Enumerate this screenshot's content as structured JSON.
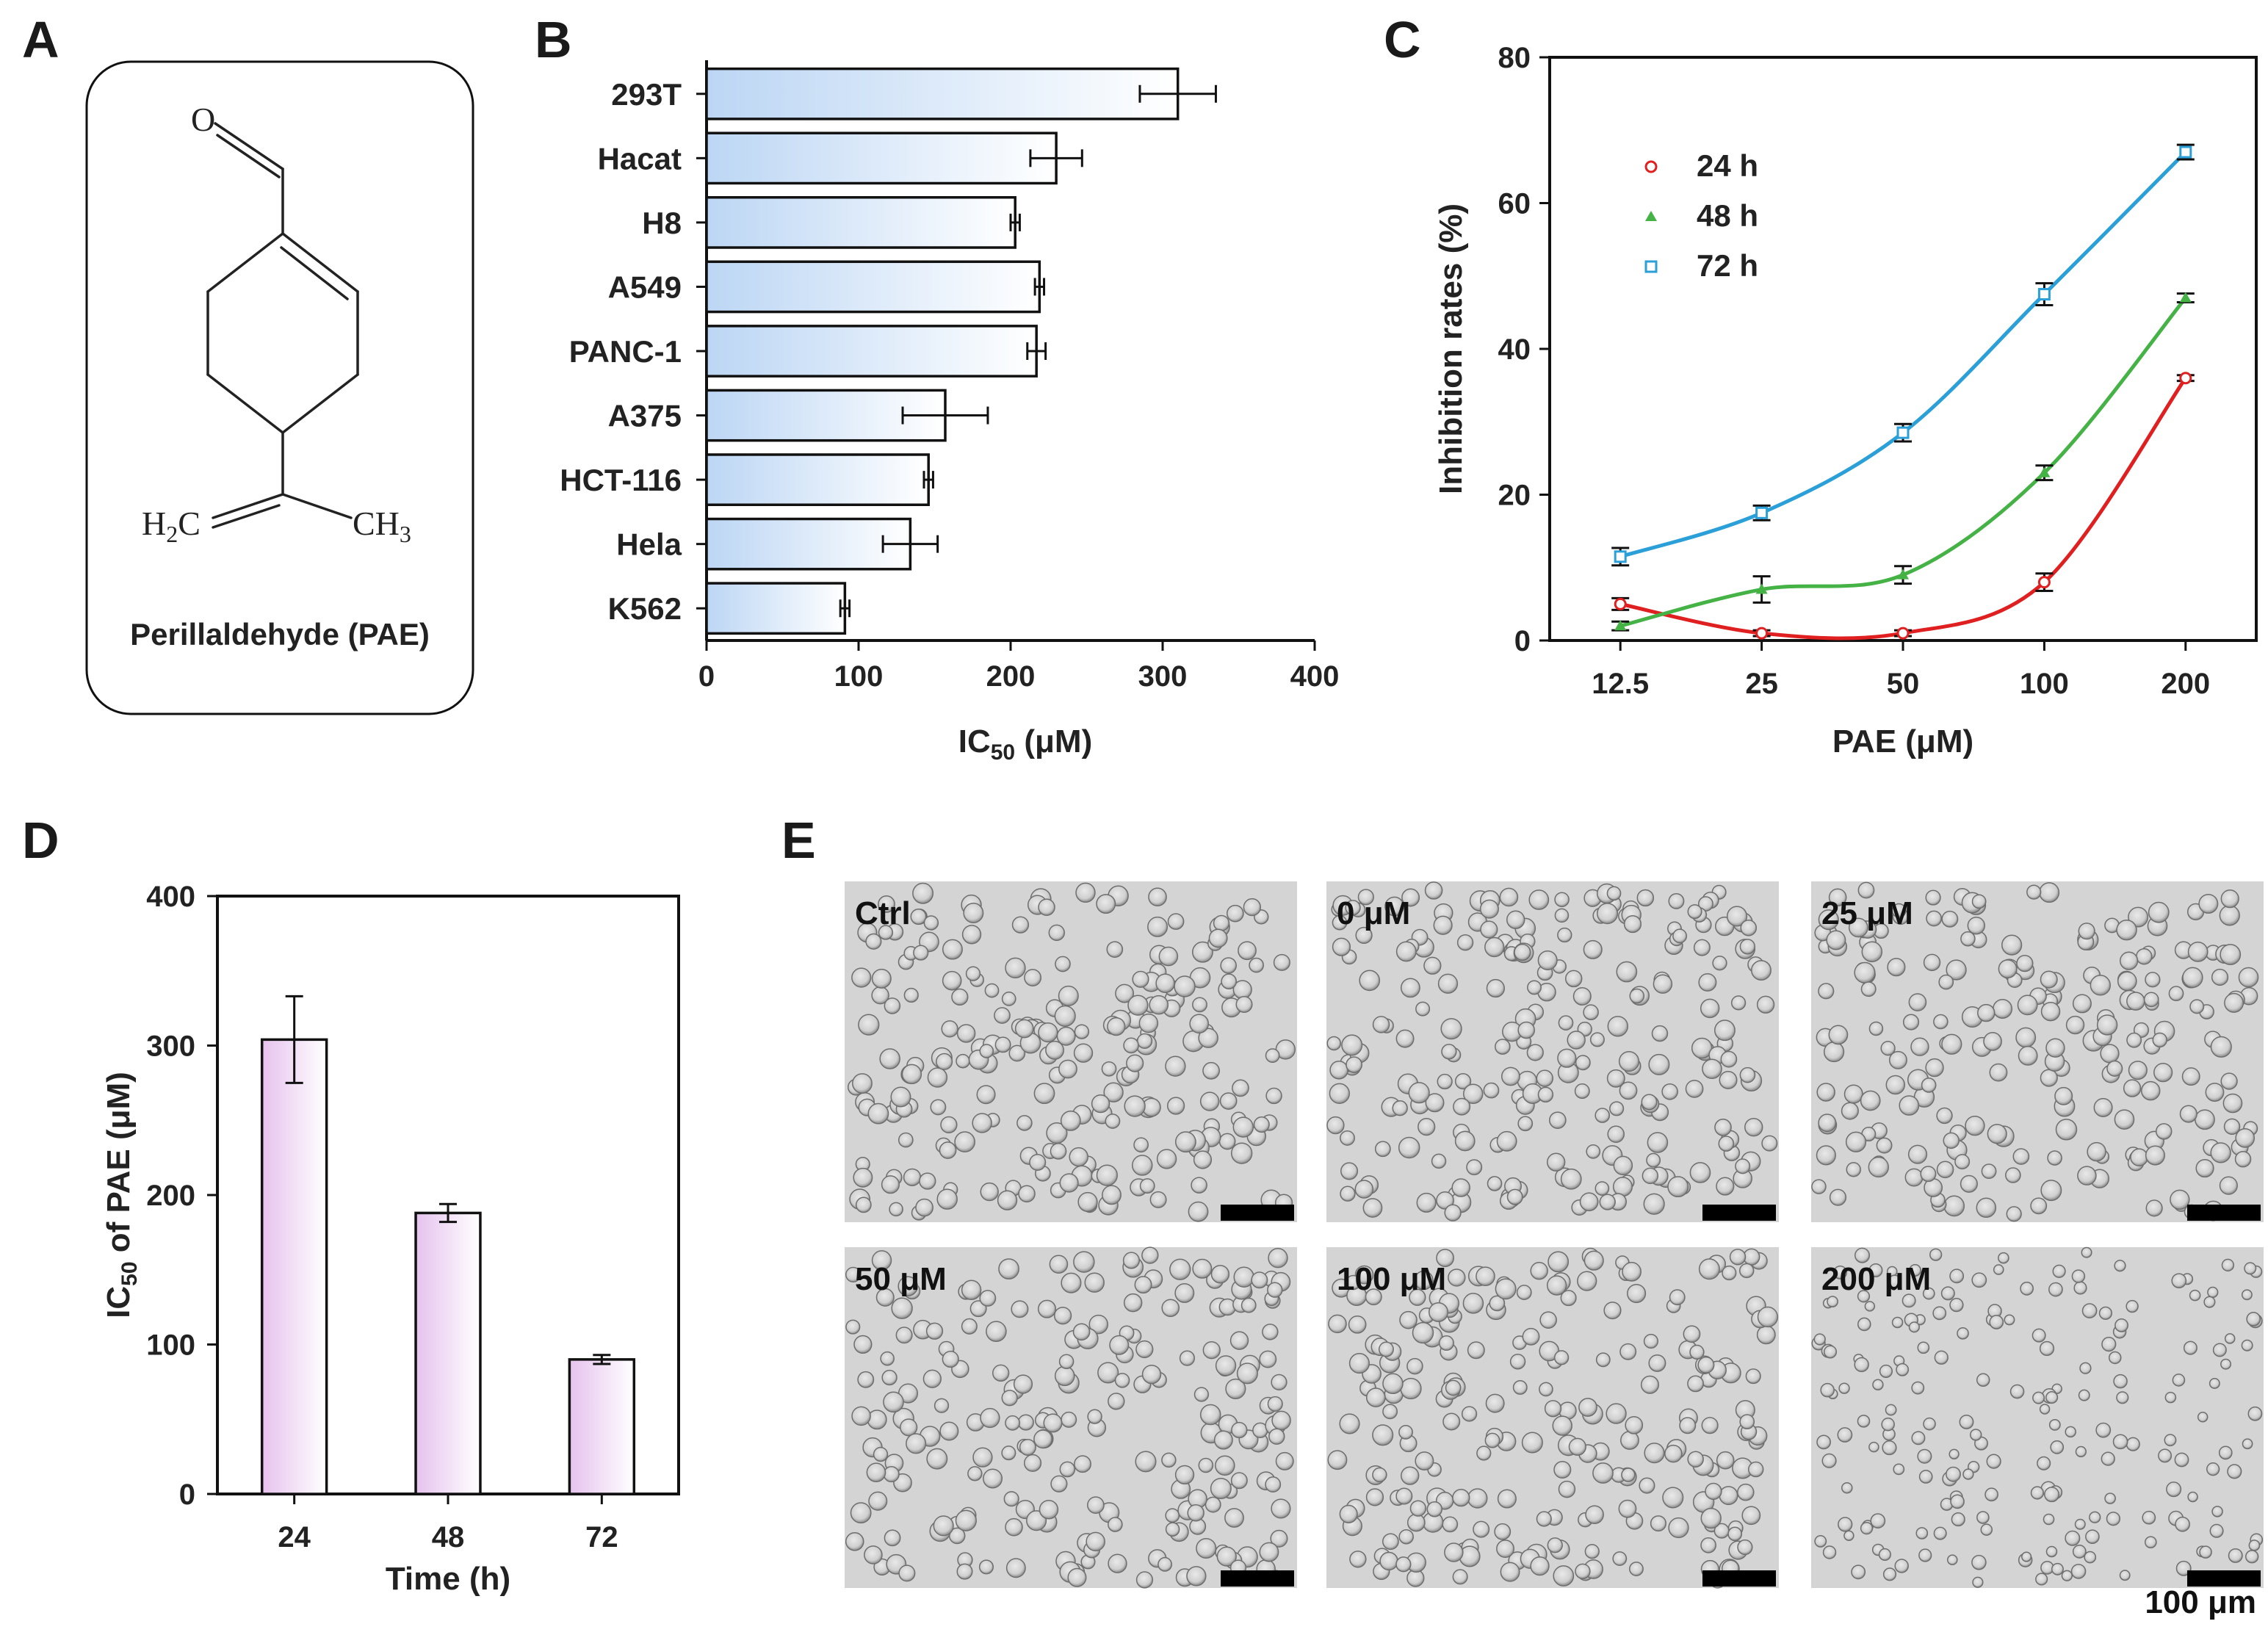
{
  "panels": {
    "a": "A",
    "b": "B",
    "c": "C",
    "d": "D",
    "e": "E"
  },
  "structure": {
    "aldehyde_o": "O",
    "left_group": "H",
    "left_group_sub": "2",
    "left_group_c": "C",
    "right_group": "CH",
    "right_group_sub": "3",
    "caption": "Perillaldehyde (PAE)"
  },
  "chart_data": [
    {
      "id": "B",
      "type": "bar",
      "orientation": "horizontal",
      "categories": [
        "293T",
        "Hacat",
        "H8",
        "A549",
        "PANC-1",
        "A375",
        "HCT-116",
        "Hela",
        "K562"
      ],
      "values": [
        310,
        230,
        203,
        219,
        217,
        157,
        146,
        134,
        91
      ],
      "errors": [
        25,
        17,
        3,
        3,
        6,
        28,
        3,
        18,
        3
      ],
      "xlim": [
        0,
        400
      ],
      "xticks": [
        "0",
        "100",
        "200",
        "300",
        "400"
      ],
      "xlabel_main": "IC",
      "xlabel_sub": "50",
      "xlabel_unit": " (μM)",
      "fill_gradient": [
        "#bcd6f4",
        "#ffffff"
      ]
    },
    {
      "id": "C",
      "type": "line",
      "categories": [
        "12.5",
        "25",
        "50",
        "100",
        "200"
      ],
      "xlabel": "PAE (μM)",
      "ylabel": "Inhibition rates (%)",
      "ylim": [
        0,
        80
      ],
      "yticks": [
        "0",
        "20",
        "40",
        "60",
        "80"
      ],
      "series": [
        {
          "name": "24 h",
          "color": "#e02020",
          "marker": "circle",
          "values": [
            5,
            1,
            1,
            8,
            36
          ],
          "errors": [
            0.8,
            0.4,
            0.4,
            1.2,
            0.4
          ]
        },
        {
          "name": "48 h",
          "color": "#44b244",
          "marker": "triangle",
          "values": [
            2,
            7,
            9,
            23,
            47
          ],
          "errors": [
            0.6,
            1.8,
            1.2,
            1.0,
            0.6
          ]
        },
        {
          "name": "72 h",
          "color": "#2a9fd8",
          "marker": "square",
          "values": [
            11.5,
            17.5,
            28.5,
            47.5,
            67
          ],
          "errors": [
            1.2,
            1.0,
            1.2,
            1.5,
            1.0
          ]
        }
      ]
    },
    {
      "id": "D",
      "type": "bar",
      "categories": [
        "24",
        "48",
        "72"
      ],
      "values": [
        304,
        188,
        90
      ],
      "errors": [
        29,
        6,
        3
      ],
      "ylim": [
        0,
        400
      ],
      "yticks": [
        "0",
        "100",
        "200",
        "300",
        "400"
      ],
      "xlabel": "Time (h)",
      "ylabel_pre": "IC",
      "ylabel_sub": "50",
      "ylabel_post": " of PAE (μM)",
      "fill_gradient": [
        "#e6c2ee",
        "#ffffff"
      ]
    }
  ],
  "micrographs": {
    "labels": [
      "Ctrl",
      "0 μM",
      "25 μM",
      "50 μM",
      "100 μM",
      "200 μM"
    ],
    "scale_bar_label": "100 μm",
    "densities": [
      1.0,
      1.0,
      0.95,
      0.95,
      1.0,
      0.85
    ],
    "cell_sizes": [
      1.0,
      1.0,
      1.0,
      1.0,
      1.0,
      0.7
    ]
  }
}
